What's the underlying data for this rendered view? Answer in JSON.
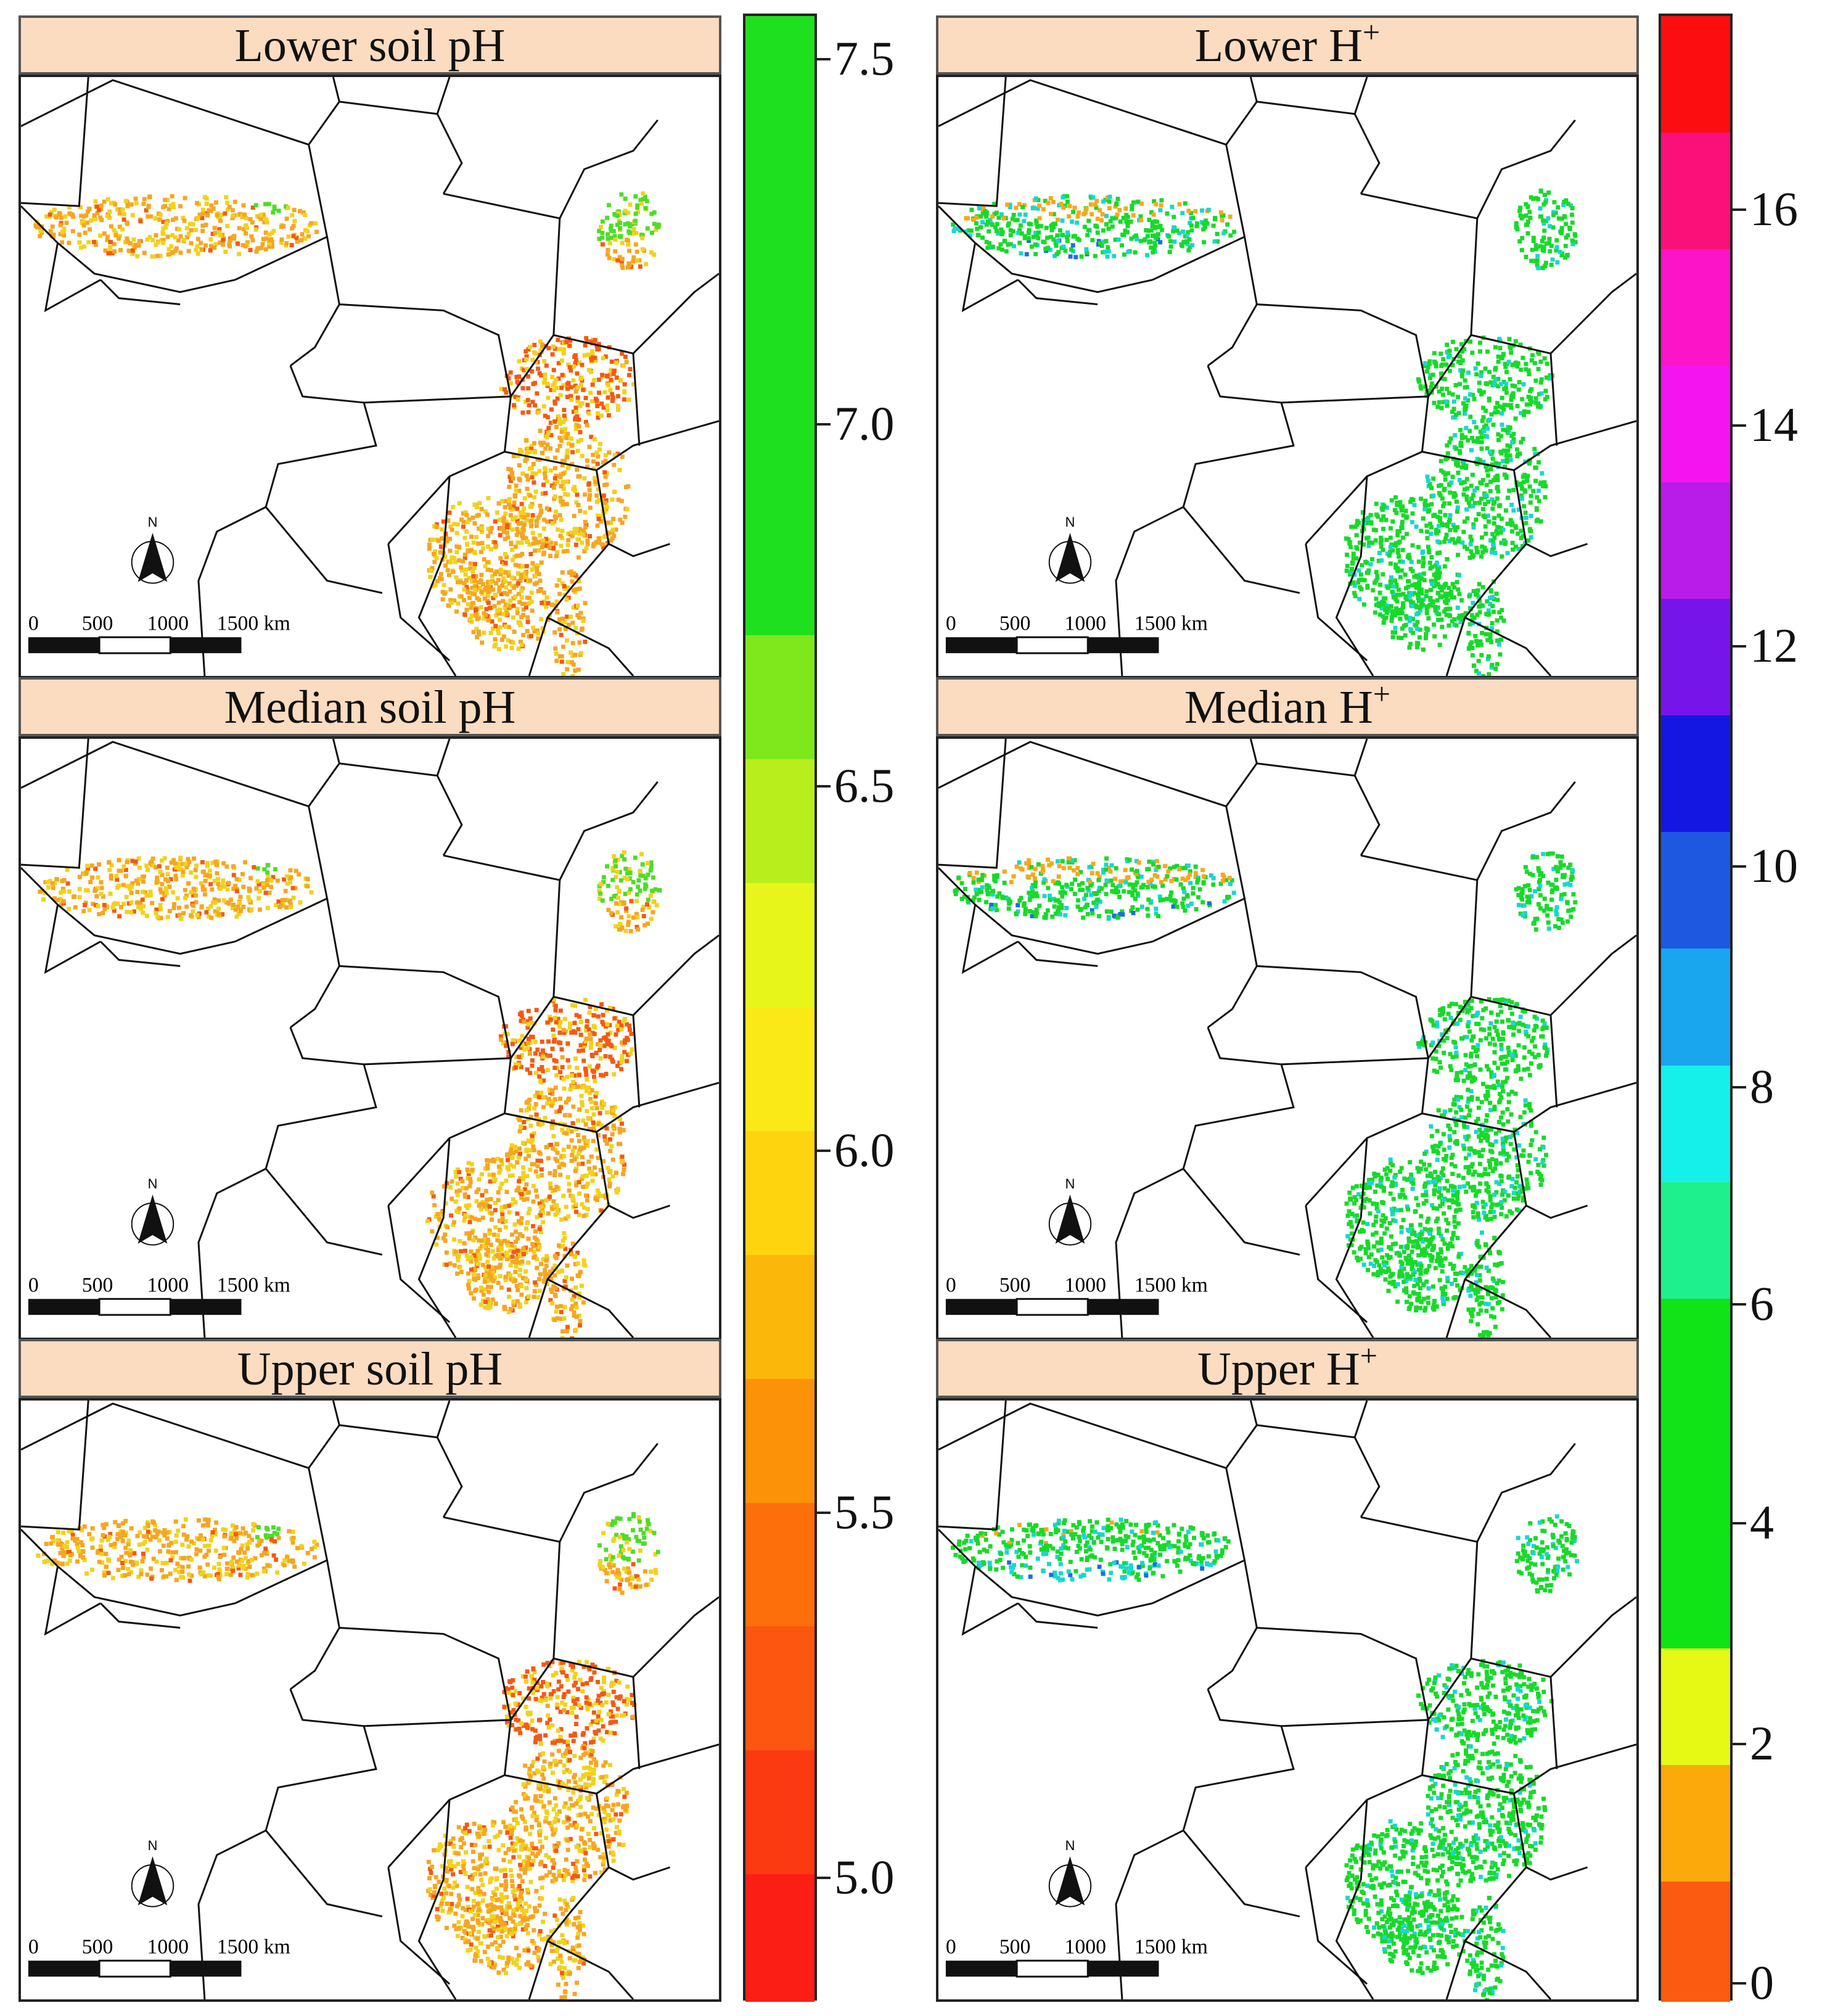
{
  "figure": {
    "left_column": {
      "panels": [
        {
          "title": "Lower soil pH",
          "variant": "ph_lower"
        },
        {
          "title": "Median soil pH",
          "variant": "ph_median"
        },
        {
          "title": "Upper soil pH",
          "variant": "ph_upper"
        }
      ],
      "colorbar": {
        "ticks": [
          "7.5",
          "7.0",
          "6.5",
          "6.0",
          "5.5",
          "5.0"
        ],
        "colors_top_to_bottom": [
          "#1fe01f",
          "#1fe01f",
          "#1fe01f",
          "#1fe01f",
          "#1fe01f",
          "#7ee81c",
          "#b8ee1c",
          "#e8f51a",
          "#fbe817",
          "#fdd40d",
          "#fcb70b",
          "#fb9208",
          "#fc6f0a",
          "#fc5610",
          "#fb3a12",
          "#fa1e14"
        ]
      }
    },
    "right_column": {
      "panels": [
        {
          "title": "Lower  H",
          "sup": "+",
          "variant": "h_lower"
        },
        {
          "title": "Median H",
          "sup": "+",
          "variant": "h_median"
        },
        {
          "title": "Upper H",
          "sup": "+",
          "variant": "h_upper"
        }
      ],
      "colorbar": {
        "ticks": [
          "16",
          "14",
          "12",
          "10",
          "8",
          "6",
          "4",
          "2",
          "0"
        ],
        "colors_top_to_bottom": [
          "#fb0d10",
          "#fb0f78",
          "#fc14c8",
          "#f414f0",
          "#b91ce9",
          "#7515ea",
          "#1317e1",
          "#1e57e0",
          "#19a6ee",
          "#16f0ea",
          "#1ef08d",
          "#10e316",
          "#10e316",
          "#10e316",
          "#e6f915",
          "#fba90b",
          "#fb5b10"
        ]
      }
    },
    "map_elements": {
      "north_label": "N",
      "scale_numbers": [
        "0",
        "500",
        "1000",
        "1500 km"
      ]
    },
    "palette": {
      "ph_orange": "#f5a623",
      "ph_yellow": "#f1d21c",
      "ph_red": "#f45a12",
      "ph_green": "#4fdc2a",
      "h_green": "#18d92a",
      "h_cyan": "#1ad6d0",
      "h_blue": "#1c6de0",
      "h_orange": "#f7a81b"
    }
  }
}
